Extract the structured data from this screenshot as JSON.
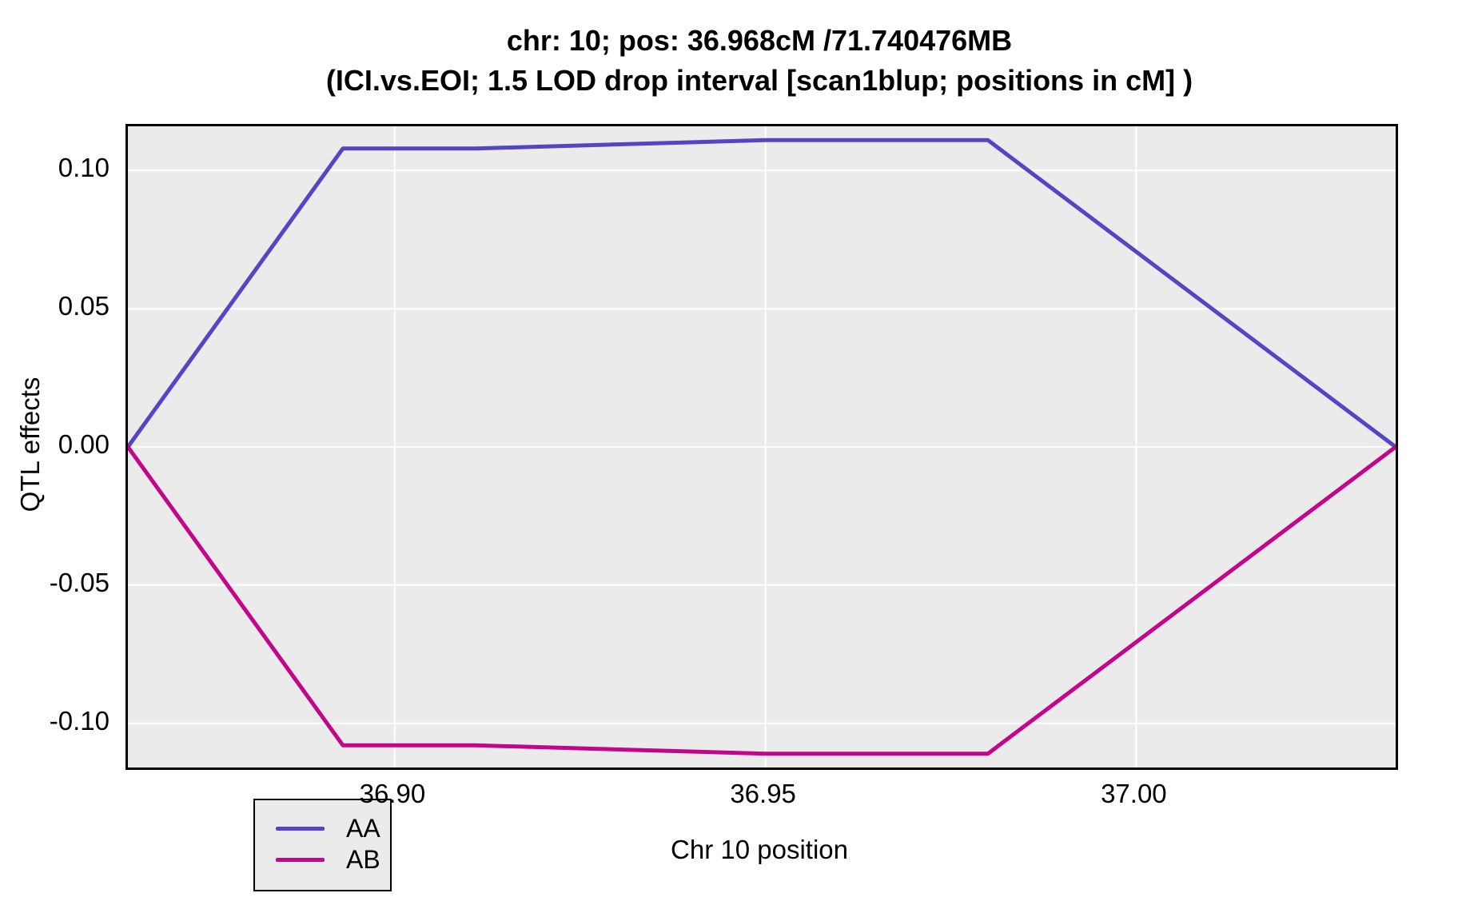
{
  "title": {
    "line1": "chr: 10; pos: 36.968cM /71.740476MB",
    "line2": "(ICI.vs.EOI; 1.5 LOD drop interval [scan1blup; positions in cM] )"
  },
  "colors": {
    "panel_background": "#EBEBEB",
    "gridline": "#FFFFFF",
    "panel_border": "#000000",
    "series_AA": "#5445C4",
    "series_AB": "#C30689"
  },
  "chart_data": {
    "type": "line",
    "title": "chr: 10; pos: 36.968cM /71.740476MB",
    "subtitle": "(ICI.vs.EOI; 1.5 LOD drop interval [scan1blup; positions in cM] )",
    "xlabel": "Chr 10 position",
    "ylabel": "QTL effects",
    "xlim": [
      36.864,
      37.035
    ],
    "ylim": [
      -0.116,
      0.116
    ],
    "grid": true,
    "legend_position": "bottom-left-inside",
    "x_ticks": [
      {
        "value": 36.9,
        "label": "36.90"
      },
      {
        "value": 36.95,
        "label": "36.95"
      },
      {
        "value": 37.0,
        "label": "37.00"
      }
    ],
    "y_ticks": [
      {
        "value": 0.1,
        "label": "0.10"
      },
      {
        "value": 0.05,
        "label": "0.05"
      },
      {
        "value": 0.0,
        "label": "0.00"
      },
      {
        "value": -0.05,
        "label": "-0.05"
      },
      {
        "value": -0.1,
        "label": "-0.10"
      }
    ],
    "series": [
      {
        "name": "AA",
        "color": "#5445C4",
        "points": [
          [
            36.864,
            0.0
          ],
          [
            36.893,
            0.108
          ],
          [
            36.911,
            0.108
          ],
          [
            36.95,
            0.111
          ],
          [
            36.98,
            0.111
          ],
          [
            37.035,
            0.0
          ]
        ]
      },
      {
        "name": "AB",
        "color": "#C30689",
        "points": [
          [
            36.864,
            0.0
          ],
          [
            36.893,
            -0.108
          ],
          [
            36.911,
            -0.108
          ],
          [
            36.95,
            -0.111
          ],
          [
            36.98,
            -0.111
          ],
          [
            37.035,
            0.0
          ]
        ]
      }
    ]
  }
}
